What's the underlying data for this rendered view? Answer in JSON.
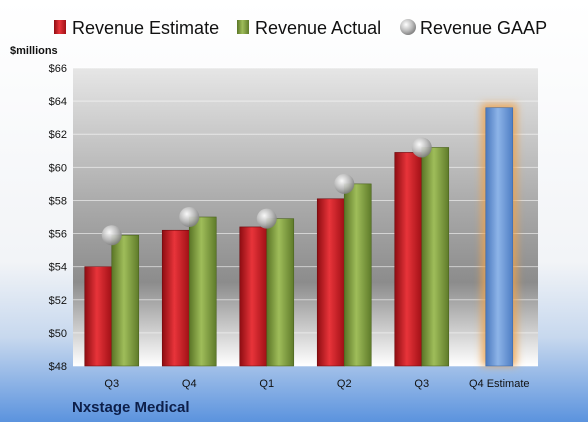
{
  "chart_data": {
    "type": "bar",
    "company": "Nxstage Medical",
    "ylabel": "$millions",
    "ylim": [
      48,
      66
    ],
    "y_ticks": [
      48,
      50,
      52,
      54,
      56,
      58,
      60,
      62,
      64,
      66
    ],
    "y_tick_labels": [
      "$48",
      "$50",
      "$52",
      "$54",
      "$56",
      "$58",
      "$60",
      "$62",
      "$64",
      "$66"
    ],
    "categories": [
      "Q3",
      "Q4",
      "Q1",
      "Q2",
      "Q3",
      "Q4 Estimate"
    ],
    "grid": true,
    "legend_position": "top",
    "series": [
      {
        "name": "Revenue Estimate",
        "kind": "bar",
        "color": "#c0181e",
        "values": [
          54.0,
          56.2,
          56.4,
          58.1,
          60.9,
          null
        ]
      },
      {
        "name": "Revenue Actual",
        "kind": "bar",
        "color": "#7e9c3a",
        "values": [
          55.9,
          57.0,
          56.9,
          59.0,
          61.2,
          null
        ]
      },
      {
        "name": "Revenue GAAP",
        "kind": "marker",
        "color": "#b8b8b8",
        "values": [
          55.9,
          57.0,
          56.9,
          59.0,
          61.2,
          null
        ]
      }
    ],
    "highlight": {
      "category": "Q4 Estimate",
      "value": 63.6,
      "color": "#6b98d6",
      "glow": "#f0a24a"
    }
  }
}
